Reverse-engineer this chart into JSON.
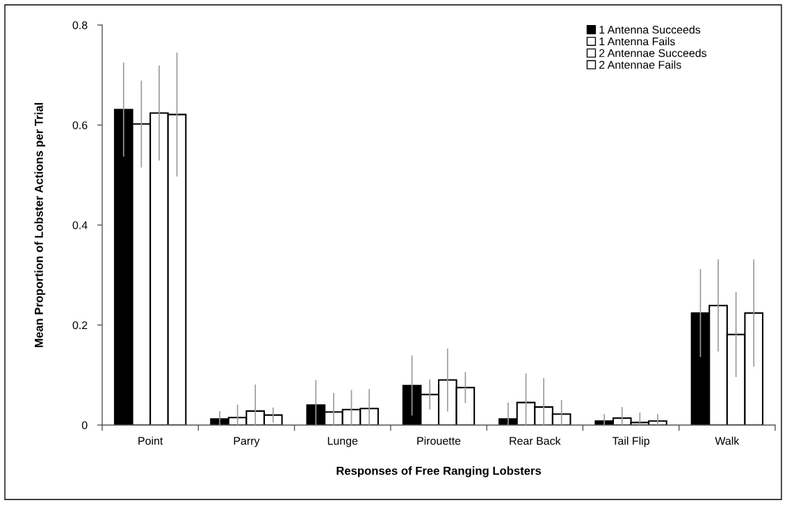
{
  "chart_data": {
    "type": "bar",
    "xlabel": "Responses of Free Ranging Lobsters",
    "ylabel": "Mean Proportion of Lobster Actions per Trial",
    "categories": [
      "Point",
      "Parry",
      "Lunge",
      "Pirouette",
      "Rear Back",
      "Tail Flip",
      "Walk"
    ],
    "series": [
      {
        "name": "1 Antenna Succeeds",
        "color": "#000000",
        "values": [
          0.631,
          0.012,
          0.04,
          0.079,
          0.012,
          0.008,
          0.224
        ],
        "errors": [
          0.094,
          [
            0,
            0.028
          ],
          [
            0,
            0.09
          ],
          0.06,
          [
            0,
            0.045
          ],
          [
            0,
            0.022
          ],
          0.088
        ]
      },
      {
        "name": "1 Antenna Fails",
        "color": "#ffffff",
        "values": [
          0.602,
          0.015,
          0.026,
          0.061,
          0.045,
          0.014,
          0.239
        ],
        "errors": [
          0.087,
          [
            0,
            0.041
          ],
          [
            0,
            0.064
          ],
          0.03,
          [
            0,
            0.103
          ],
          [
            0,
            0.036
          ],
          0.092
        ]
      },
      {
        "name": "2 Antennae Succeeds",
        "color": "#ffffff",
        "values": [
          0.624,
          0.028,
          0.031,
          0.09,
          0.036,
          0.005,
          0.181
        ],
        "errors": [
          0.095,
          [
            0,
            0.081
          ],
          [
            0,
            0.07
          ],
          0.063,
          [
            0,
            0.094
          ],
          [
            0,
            0.025
          ],
          0.085
        ]
      },
      {
        "name": "2 Antennae Fails",
        "color": "#ffffff",
        "values": [
          0.621,
          0.02,
          0.033,
          0.075,
          0.022,
          0.008,
          0.224
        ],
        "errors": [
          0.124,
          0.015,
          [
            0,
            0.072
          ],
          0.031,
          [
            0,
            0.05
          ],
          [
            0,
            0.022
          ],
          0.107
        ]
      }
    ],
    "ylim": [
      0,
      0.8
    ],
    "yticks": [
      0,
      0.2,
      0.4,
      0.6,
      0.8
    ],
    "grid": false,
    "legend": "top right"
  }
}
